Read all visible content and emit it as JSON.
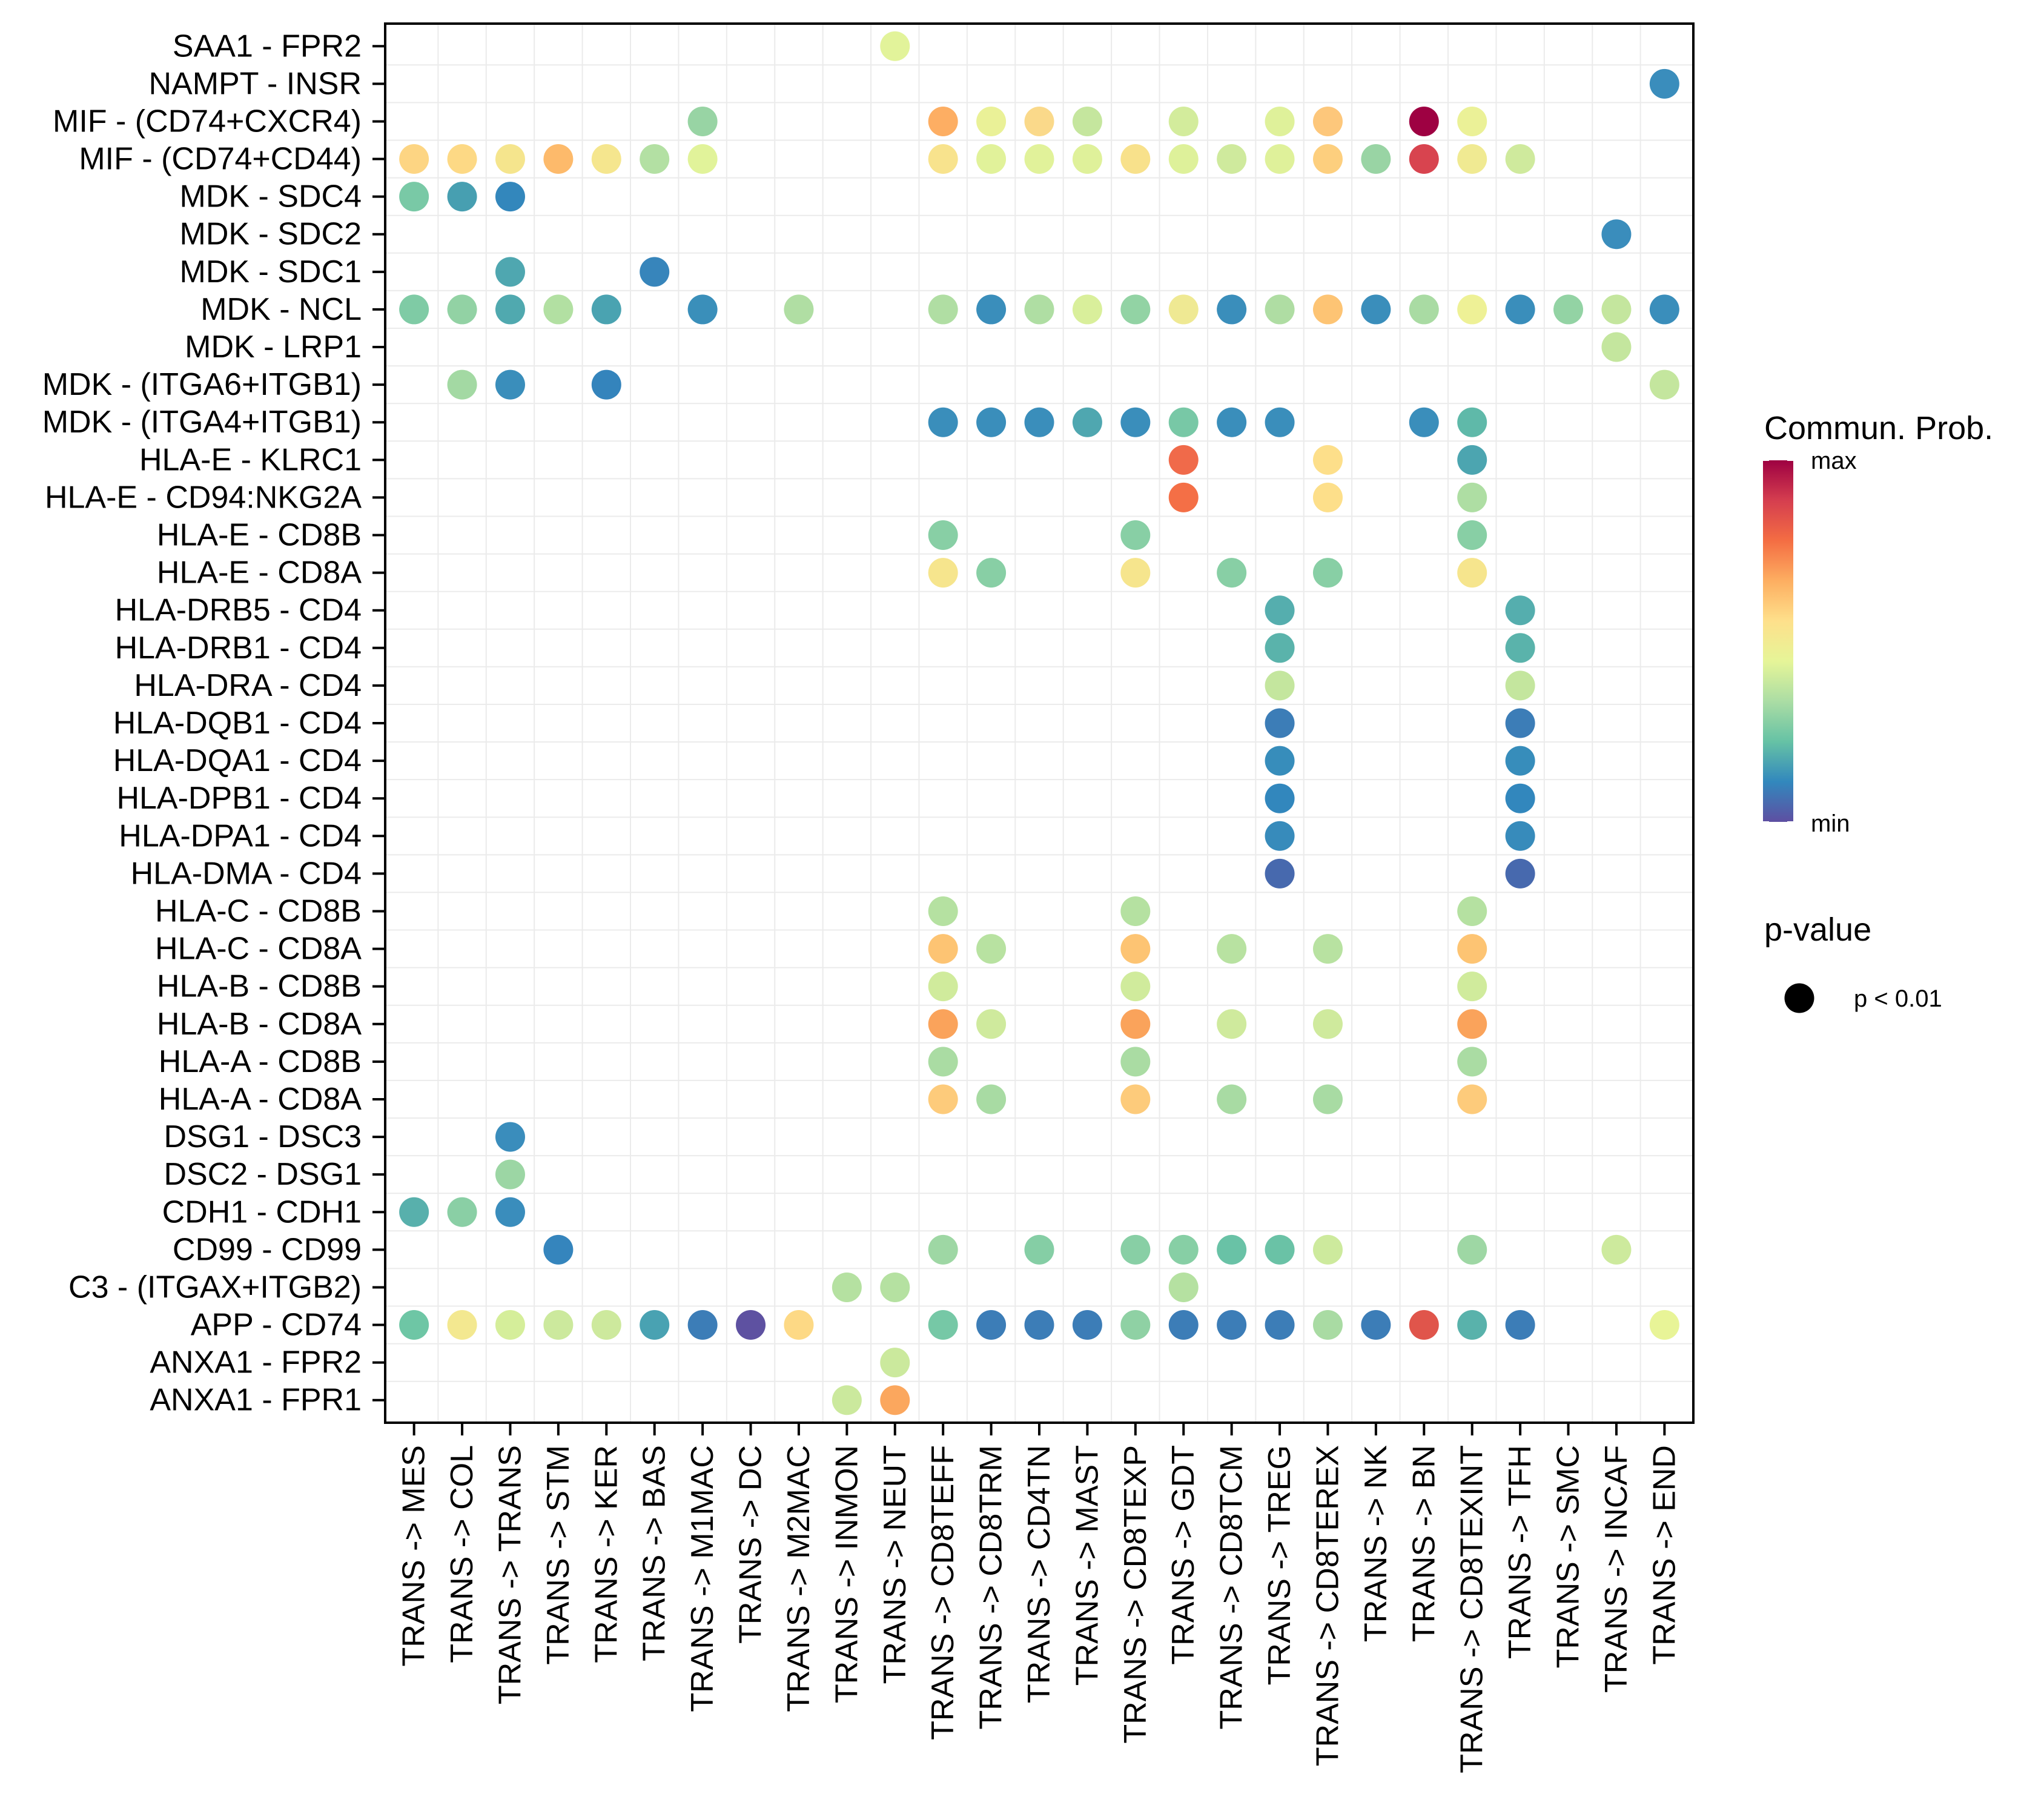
{
  "chart_data": {
    "type": "scatter",
    "subtype": "dot-matrix",
    "title": "",
    "xlabel": "",
    "ylabel": "",
    "grid": true,
    "x_categories": [
      "TRANS -> MES",
      "TRANS -> COL",
      "TRANS -> TRANS",
      "TRANS -> STM",
      "TRANS -> KER",
      "TRANS -> BAS",
      "TRANS -> M1MAC",
      "TRANS -> DC",
      "TRANS -> M2MAC",
      "TRANS -> INMON",
      "TRANS -> NEUT",
      "TRANS -> CD8TEFF",
      "TRANS -> CD8TRM",
      "TRANS -> CD4TN",
      "TRANS -> MAST",
      "TRANS -> CD8TEXP",
      "TRANS -> GDT",
      "TRANS -> CD8TCM",
      "TRANS -> TREG",
      "TRANS -> CD8TEREX",
      "TRANS -> NK",
      "TRANS -> BN",
      "TRANS -> CD8TEXINT",
      "TRANS -> TFH",
      "TRANS -> SMC",
      "TRANS -> INCAF",
      "TRANS -> END"
    ],
    "y_categories": [
      "SAA1 - FPR2",
      "NAMPT - INSR",
      "MIF - (CD74+CXCR4)",
      "MIF - (CD74+CD44)",
      "MDK - SDC4",
      "MDK - SDC2",
      "MDK - SDC1",
      "MDK - NCL",
      "MDK - LRP1",
      "MDK - (ITGA6+ITGB1)",
      "MDK - (ITGA4+ITGB1)",
      "HLA-E - KLRC1",
      "HLA-E - CD94:NKG2A",
      "HLA-E - CD8B",
      "HLA-E - CD8A",
      "HLA-DRB5 - CD4",
      "HLA-DRB1 - CD4",
      "HLA-DRA - CD4",
      "HLA-DQB1 - CD4",
      "HLA-DQA1 - CD4",
      "HLA-DPB1 - CD4",
      "HLA-DPA1 - CD4",
      "HLA-DMA - CD4",
      "HLA-C - CD8B",
      "HLA-C - CD8A",
      "HLA-B - CD8B",
      "HLA-B - CD8A",
      "HLA-A - CD8B",
      "HLA-A - CD8A",
      "DSG1 - DSC3",
      "DSC2 - DSG1",
      "CDH1 - CDH1",
      "CD99 - CD99",
      "C3 - (ITGAX+ITGB2)",
      "APP - CD74",
      "ANXA1 - FPR2",
      "ANXA1 - FPR1"
    ],
    "points_note": "Each row lists [x_category_index, fill_color]; color encodes Commun. Prob. on Spectral scale (min=purple/blue, max=dark red). All shown points have p < 0.01.",
    "points": [
      [
        [
          10,
          "#E2F39A"
        ]
      ],
      [
        [
          26,
          "#3A8DBC"
        ]
      ],
      [
        [
          6,
          "#98D4A4"
        ],
        [
          11,
          "#FDAE63"
        ],
        [
          12,
          "#EAF197"
        ],
        [
          13,
          "#FAD98A"
        ],
        [
          14,
          "#C5E69E"
        ],
        [
          16,
          "#D3EC9C"
        ],
        [
          18,
          "#DFF19A"
        ],
        [
          19,
          "#FDC77B"
        ],
        [
          21,
          "#9E0142"
        ],
        [
          22,
          "#EBF197"
        ]
      ],
      [
        [
          0,
          "#FDD583"
        ],
        [
          1,
          "#FDD985"
        ],
        [
          2,
          "#F5E58D"
        ],
        [
          3,
          "#FDBA6B"
        ],
        [
          4,
          "#F5E68E"
        ],
        [
          5,
          "#B3E0A3"
        ],
        [
          6,
          "#E1F39A"
        ],
        [
          11,
          "#F8E38D"
        ],
        [
          12,
          "#E1F29A"
        ],
        [
          13,
          "#E1F29A"
        ],
        [
          14,
          "#DFF19A"
        ],
        [
          15,
          "#F8E18B"
        ],
        [
          16,
          "#DEF19A"
        ],
        [
          17,
          "#CFEA9D"
        ],
        [
          18,
          "#DFF19A"
        ],
        [
          19,
          "#FDCF7E"
        ],
        [
          20,
          "#99D4A4"
        ],
        [
          21,
          "#D8444F"
        ],
        [
          22,
          "#F0EA92"
        ],
        [
          23,
          "#CFEA9D"
        ]
      ],
      [
        [
          0,
          "#79C9A6"
        ],
        [
          1,
          "#479FB1"
        ],
        [
          2,
          "#3387BC"
        ]
      ],
      [
        [
          25,
          "#3A8DBC"
        ]
      ],
      [
        [
          2,
          "#4FA7B0"
        ],
        [
          5,
          "#3785BB"
        ]
      ],
      [
        [
          0,
          "#7FCBA5"
        ],
        [
          1,
          "#92D2A4"
        ],
        [
          2,
          "#50A9AF"
        ],
        [
          3,
          "#B2E0A2"
        ],
        [
          4,
          "#4AA3B1"
        ],
        [
          6,
          "#3A8FBA"
        ],
        [
          8,
          "#B0DEA3"
        ],
        [
          11,
          "#B0DEA3"
        ],
        [
          12,
          "#3A8EBB"
        ],
        [
          13,
          "#AFDEA3"
        ],
        [
          14,
          "#D9EF9B"
        ],
        [
          15,
          "#92D3A4"
        ],
        [
          16,
          "#EFE993"
        ],
        [
          17,
          "#3A8EBB"
        ],
        [
          18,
          "#AFDDA3"
        ],
        [
          19,
          "#FDC474"
        ],
        [
          20,
          "#3A8EBB"
        ],
        [
          21,
          "#A9DBA3"
        ],
        [
          22,
          "#EEF196"
        ],
        [
          23,
          "#3A8EBB"
        ],
        [
          24,
          "#93D3A4"
        ],
        [
          25,
          "#C4E69E"
        ],
        [
          26,
          "#3A8EBB"
        ]
      ],
      [
        [
          25,
          "#C4E69E"
        ]
      ],
      [
        [
          1,
          "#A3D9A3"
        ],
        [
          2,
          "#3A8EBB"
        ],
        [
          4,
          "#3484BC"
        ],
        [
          26,
          "#C4E69E"
        ]
      ],
      [
        [
          11,
          "#3A8EBB"
        ],
        [
          12,
          "#3A8EBB"
        ],
        [
          13,
          "#3A8EBB"
        ],
        [
          14,
          "#4FA7B0"
        ],
        [
          15,
          "#3A8EBB"
        ],
        [
          16,
          "#78C8A6"
        ],
        [
          17,
          "#3A8EBB"
        ],
        [
          18,
          "#3A8EBB"
        ],
        [
          21,
          "#3A8EBB"
        ],
        [
          22,
          "#5FB9A9"
        ]
      ],
      [
        [
          16,
          "#F06A4A"
        ],
        [
          19,
          "#FDDF8A"
        ],
        [
          22,
          "#4CA5B0"
        ]
      ],
      [
        [
          16,
          "#F46F46"
        ],
        [
          19,
          "#FDDF8A"
        ],
        [
          22,
          "#AEDEA3"
        ]
      ],
      [
        [
          11,
          "#88CFA5"
        ],
        [
          15,
          "#88CFA5"
        ],
        [
          22,
          "#88CFA5"
        ]
      ],
      [
        [
          11,
          "#F6E58D"
        ],
        [
          12,
          "#88CFA5"
        ],
        [
          15,
          "#F6E58D"
        ],
        [
          17,
          "#88CFA5"
        ],
        [
          19,
          "#88CFA5"
        ],
        [
          22,
          "#F6E58D"
        ]
      ],
      [
        [
          18,
          "#55AEAE"
        ],
        [
          23,
          "#55AEAE"
        ]
      ],
      [
        [
          18,
          "#5AB3AB"
        ],
        [
          23,
          "#5AB3AB"
        ]
      ],
      [
        [
          18,
          "#C4E69E"
        ],
        [
          23,
          "#C4E69E"
        ]
      ],
      [
        [
          18,
          "#3C7DB7"
        ],
        [
          23,
          "#3C7DB7"
        ]
      ],
      [
        [
          18,
          "#378DBB"
        ],
        [
          23,
          "#378DBB"
        ]
      ],
      [
        [
          18,
          "#3287BD"
        ],
        [
          23,
          "#3287BD"
        ]
      ],
      [
        [
          18,
          "#378BBB"
        ],
        [
          23,
          "#378BBB"
        ]
      ],
      [
        [
          18,
          "#4769AE"
        ],
        [
          23,
          "#4769AE"
        ]
      ],
      [
        [
          11,
          "#B5E1A1"
        ],
        [
          15,
          "#B5E1A1"
        ],
        [
          22,
          "#B5E1A1"
        ]
      ],
      [
        [
          11,
          "#FDC473"
        ],
        [
          12,
          "#B8E2A1"
        ],
        [
          15,
          "#FDC473"
        ],
        [
          17,
          "#B8E2A1"
        ],
        [
          19,
          "#B8E2A1"
        ],
        [
          22,
          "#FDC473"
        ]
      ],
      [
        [
          11,
          "#D0EB9C"
        ],
        [
          15,
          "#D0EB9C"
        ],
        [
          22,
          "#D0EB9C"
        ]
      ],
      [
        [
          11,
          "#FAA35B"
        ],
        [
          12,
          "#CFEA9D"
        ],
        [
          15,
          "#FAA35B"
        ],
        [
          17,
          "#CFEA9D"
        ],
        [
          19,
          "#CFEA9D"
        ],
        [
          22,
          "#FAA35B"
        ]
      ],
      [
        [
          11,
          "#AADCA3"
        ],
        [
          15,
          "#AADCA3"
        ],
        [
          22,
          "#AADCA3"
        ]
      ],
      [
        [
          11,
          "#FDCB7B"
        ],
        [
          12,
          "#A8DBA3"
        ],
        [
          15,
          "#FDCB7B"
        ],
        [
          17,
          "#A8DBA3"
        ],
        [
          19,
          "#A8DBA3"
        ],
        [
          22,
          "#FDCB7B"
        ]
      ],
      [
        [
          2,
          "#3A8DBC"
        ]
      ],
      [
        [
          2,
          "#9CD6A4"
        ]
      ],
      [
        [
          0,
          "#58B0AC"
        ],
        [
          1,
          "#8ACFA5"
        ],
        [
          2,
          "#3A8DBC"
        ]
      ],
      [
        [
          3,
          "#3585BD"
        ],
        [
          11,
          "#9ED7A4"
        ],
        [
          13,
          "#85CEA5"
        ],
        [
          15,
          "#88CFA5"
        ],
        [
          16,
          "#87CFA5"
        ],
        [
          17,
          "#69C2A6"
        ],
        [
          18,
          "#6AC2A6"
        ],
        [
          19,
          "#CDEA9D"
        ],
        [
          22,
          "#9ED7A4"
        ],
        [
          25,
          "#CDEA9D"
        ]
      ],
      [
        [
          9,
          "#B5E1A1"
        ],
        [
          10,
          "#B5E1A1"
        ],
        [
          16,
          "#B5E1A1"
        ]
      ],
      [
        [
          0,
          "#6EC6A5"
        ],
        [
          1,
          "#F3E890"
        ],
        [
          2,
          "#D5EE9A"
        ],
        [
          3,
          "#CCE99D"
        ],
        [
          4,
          "#CDE99D"
        ],
        [
          5,
          "#49A2B2"
        ],
        [
          6,
          "#3C7DB7"
        ],
        [
          7,
          "#5E51A1"
        ],
        [
          8,
          "#FDD985"
        ],
        [
          11,
          "#76C8A6"
        ],
        [
          12,
          "#3C7DB7"
        ],
        [
          13,
          "#3C7DB7"
        ],
        [
          14,
          "#3C7DB7"
        ],
        [
          15,
          "#8FD1A4"
        ],
        [
          16,
          "#3C7DB7"
        ],
        [
          17,
          "#3C7DB7"
        ],
        [
          18,
          "#3C7DB7"
        ],
        [
          19,
          "#A9DBA3"
        ],
        [
          20,
          "#3C7DB7"
        ],
        [
          21,
          "#E0554B"
        ],
        [
          22,
          "#59B2AB"
        ],
        [
          23,
          "#3C7DB7"
        ],
        [
          26,
          "#E8F497"
        ]
      ],
      [
        [
          10,
          "#CBE99D"
        ]
      ],
      [
        [
          9,
          "#CBE99D"
        ],
        [
          10,
          "#FBA75E"
        ]
      ]
    ],
    "legend": {
      "placement": "right",
      "color": {
        "title": "Commun. Prob.",
        "max_label": "max",
        "min_label": "min",
        "palette_top_to_bottom": [
          "#9E0142",
          "#D53E4F",
          "#F46D43",
          "#FDAE61",
          "#FEE08B",
          "#E6F598",
          "#ABDDA4",
          "#66C2A5",
          "#3288BD",
          "#5E4FA2"
        ]
      },
      "size": {
        "title": "p-value",
        "entries": [
          {
            "label": "p < 0.01",
            "color": "#000000"
          }
        ]
      }
    }
  },
  "colors": {
    "background": "#FFFFFF",
    "panel_border": "#000000",
    "grid": "#EBEBEB"
  }
}
